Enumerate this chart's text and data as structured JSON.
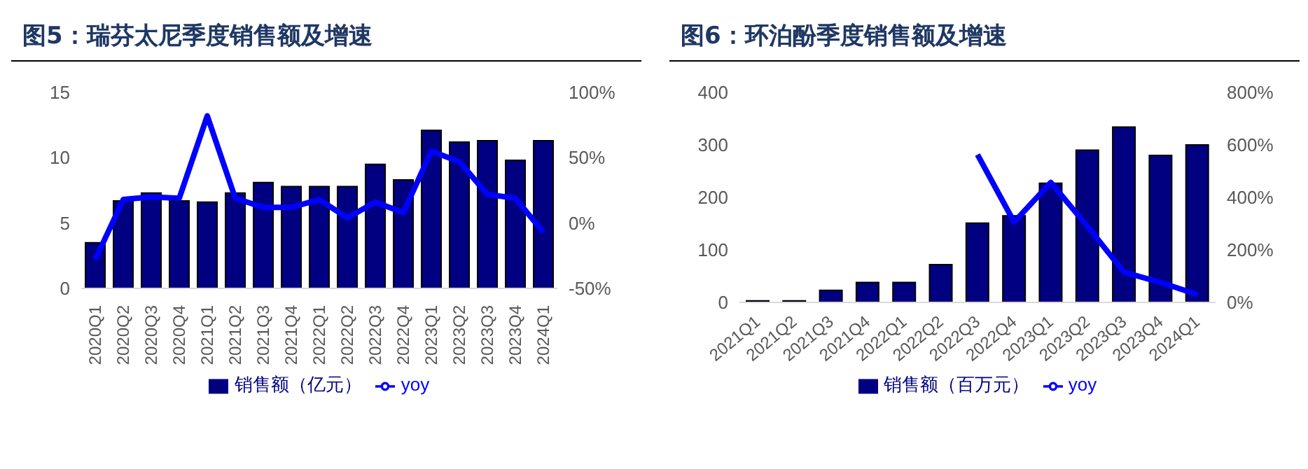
{
  "chart_data": [
    {
      "type": "bar",
      "title": "图5：瑞芬太尼季度销售额及增速",
      "categories": [
        "2020Q1",
        "2020Q2",
        "2020Q3",
        "2020Q4",
        "2021Q1",
        "2021Q2",
        "2021Q3",
        "2021Q4",
        "2022Q1",
        "2022Q2",
        "2022Q3",
        "2022Q4",
        "2023Q1",
        "2023Q2",
        "2023Q3",
        "2023Q4",
        "2024Q1"
      ],
      "series": [
        {
          "name": "销售额（亿元）",
          "color": "#000080",
          "values": [
            3.5,
            6.7,
            7.3,
            6.7,
            6.6,
            7.3,
            8.1,
            7.8,
            7.8,
            7.8,
            9.5,
            8.3,
            12.1,
            11.2,
            11.3,
            9.8,
            11.3
          ]
        },
        {
          "name": "yoy",
          "type": "line",
          "axis": "y2",
          "color": "#0000ff",
          "values": [
            -28,
            18,
            20,
            19,
            82,
            19,
            12,
            12,
            18,
            4,
            16,
            8,
            55,
            47,
            22,
            19,
            -7
          ]
        }
      ],
      "ylim": [
        0,
        15
      ],
      "yticks": [
        0,
        5,
        10,
        15
      ],
      "y2lim": [
        -50,
        100
      ],
      "y2ticks": [
        {
          "value": -50,
          "label": "-50%"
        },
        {
          "value": 0,
          "label": "0%"
        },
        {
          "value": 50,
          "label": "50%"
        },
        {
          "value": 100,
          "label": "100%"
        }
      ],
      "grid": false,
      "legend": "bottom"
    },
    {
      "type": "bar",
      "title": "图6：环泊酚季度销售额及增速",
      "categories": [
        "2021Q1",
        "2021Q2",
        "2021Q3",
        "2021Q4",
        "2022Q1",
        "2022Q2",
        "2022Q3",
        "2022Q4",
        "2023Q1",
        "2023Q2",
        "2023Q3",
        "2023Q4",
        "2024Q1"
      ],
      "series": [
        {
          "name": "销售额（百万元）",
          "color": "#000080",
          "values": [
            3,
            3,
            23,
            38,
            38,
            72,
            151,
            165,
            227,
            290,
            334,
            280,
            300
          ]
        },
        {
          "name": "yoy",
          "type": "line",
          "axis": "y2",
          "color": "#0000ff",
          "values": [
            null,
            null,
            null,
            null,
            null,
            null,
            563,
            306,
            457,
            290,
            115,
            76,
            30
          ]
        }
      ],
      "ylim": [
        0,
        400
      ],
      "yticks": [
        0,
        100,
        200,
        300,
        400
      ],
      "y2lim": [
        0,
        800
      ],
      "y2ticks": [
        {
          "value": 0,
          "label": "0%"
        },
        {
          "value": 200,
          "label": "200%"
        },
        {
          "value": 400,
          "label": "400%"
        },
        {
          "value": 600,
          "label": "600%"
        },
        {
          "value": 800,
          "label": "800%"
        }
      ],
      "grid": false,
      "legend": "bottom"
    }
  ]
}
